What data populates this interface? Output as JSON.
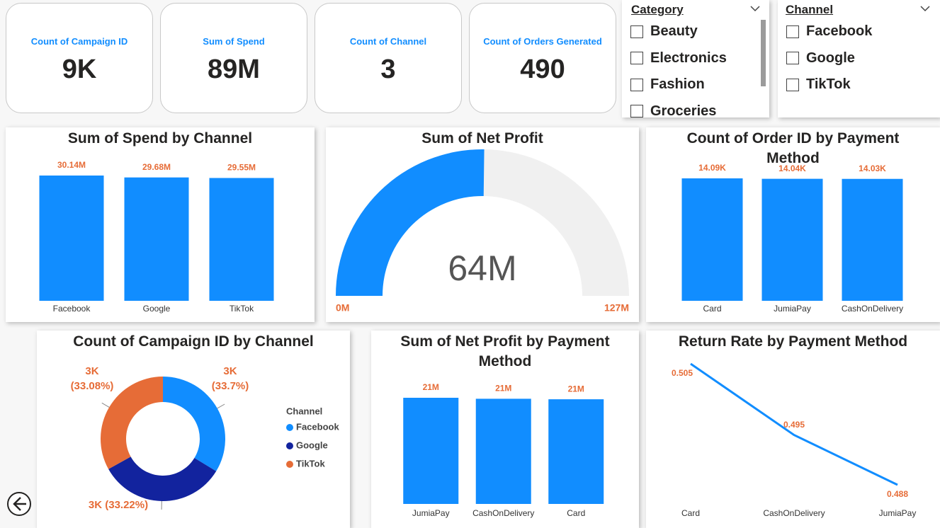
{
  "cards": [
    {
      "label": "Count of Campaign ID",
      "value": "9K"
    },
    {
      "label": "Sum of Spend",
      "value": "89M"
    },
    {
      "label": "Count of Channel",
      "value": "3"
    },
    {
      "label": "Count of Orders Generated",
      "value": "490"
    }
  ],
  "slicers": [
    {
      "title": "Category",
      "items": [
        "Beauty",
        "Electronics",
        "Fashion",
        "Groceries"
      ]
    },
    {
      "title": "Channel",
      "items": [
        "Facebook",
        "Google",
        "TikTok"
      ]
    }
  ],
  "chart_data": [
    {
      "type": "bar",
      "title": "Sum of Spend by Channel",
      "categories": [
        "Facebook",
        "Google",
        "TikTok"
      ],
      "values": [
        30.14,
        29.68,
        29.55
      ],
      "value_labels": [
        "30.14M",
        "29.68M",
        "29.55M"
      ],
      "color": "#118dff"
    },
    {
      "type": "gauge",
      "title": "Sum of Net Profit",
      "values": [
        64
      ],
      "value_labels": [
        "64M"
      ],
      "ylim": [
        0,
        127
      ],
      "yticks": [
        {
          "value": 0,
          "label": "0M"
        },
        {
          "value": 127,
          "label": "127M"
        }
      ],
      "color": "#118dff",
      "track_color": "#f0f0f0"
    },
    {
      "type": "bar",
      "title": "Count of Order ID by Payment Method",
      "categories": [
        "Card",
        "JumiaPay",
        "CashOnDelivery"
      ],
      "values": [
        14.09,
        14.04,
        14.03
      ],
      "value_labels": [
        "14.09K",
        "14.04K",
        "14.03K"
      ],
      "color": "#118dff"
    },
    {
      "type": "donut",
      "title": "Count of Campaign ID by Channel",
      "legend_title": "Channel",
      "categories": [
        "Facebook",
        "Google",
        "TikTok"
      ],
      "values": [
        33.7,
        33.22,
        33.08
      ],
      "value_labels": [
        "3K (33.7%)",
        "3K (33.22%)",
        "3K (33.08%)"
      ],
      "colors": [
        "#118dff",
        "#12239e",
        "#e66c37"
      ]
    },
    {
      "type": "bar",
      "title": "Sum of Net Profit by Payment Method",
      "categories": [
        "JumiaPay",
        "CashOnDelivery",
        "Card"
      ],
      "values": [
        21.3,
        21.1,
        21.0
      ],
      "value_labels": [
        "21M",
        "21M",
        "21M"
      ],
      "color": "#118dff"
    },
    {
      "type": "line",
      "title": "Return Rate by Payment Method",
      "categories": [
        "Card",
        "CashOnDelivery",
        "JumiaPay"
      ],
      "values": [
        0.505,
        0.495,
        0.488
      ],
      "color": "#118dff"
    }
  ]
}
